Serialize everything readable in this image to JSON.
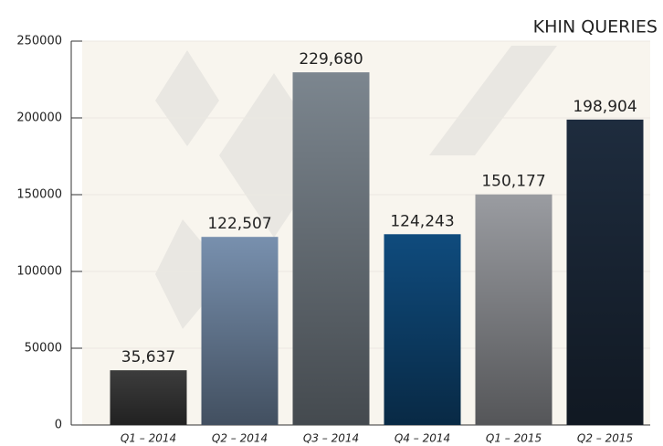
{
  "chart_data": {
    "type": "bar",
    "title": "KHIN QUERIES",
    "categories": [
      "Q1 – 2014",
      "Q2 – 2014",
      "Q3 – 2014",
      "Q4 – 2014",
      "Q1 – 2015",
      "Q2 – 2015"
    ],
    "values": [
      35637,
      122507,
      229680,
      124243,
      150177,
      198904
    ],
    "value_labels": [
      "35,637",
      "122,507",
      "229,680",
      "124,243",
      "150,177",
      "198,904"
    ],
    "colors": [
      "#3c3c3c",
      "#7890ae",
      "#7c868f",
      "#0f4b7d",
      "#9a9ca1",
      "#1e2c3e"
    ],
    "ylim": [
      0,
      250000
    ],
    "yticks": [
      0,
      50000,
      100000,
      150000,
      200000,
      250000
    ],
    "grid": true
  }
}
